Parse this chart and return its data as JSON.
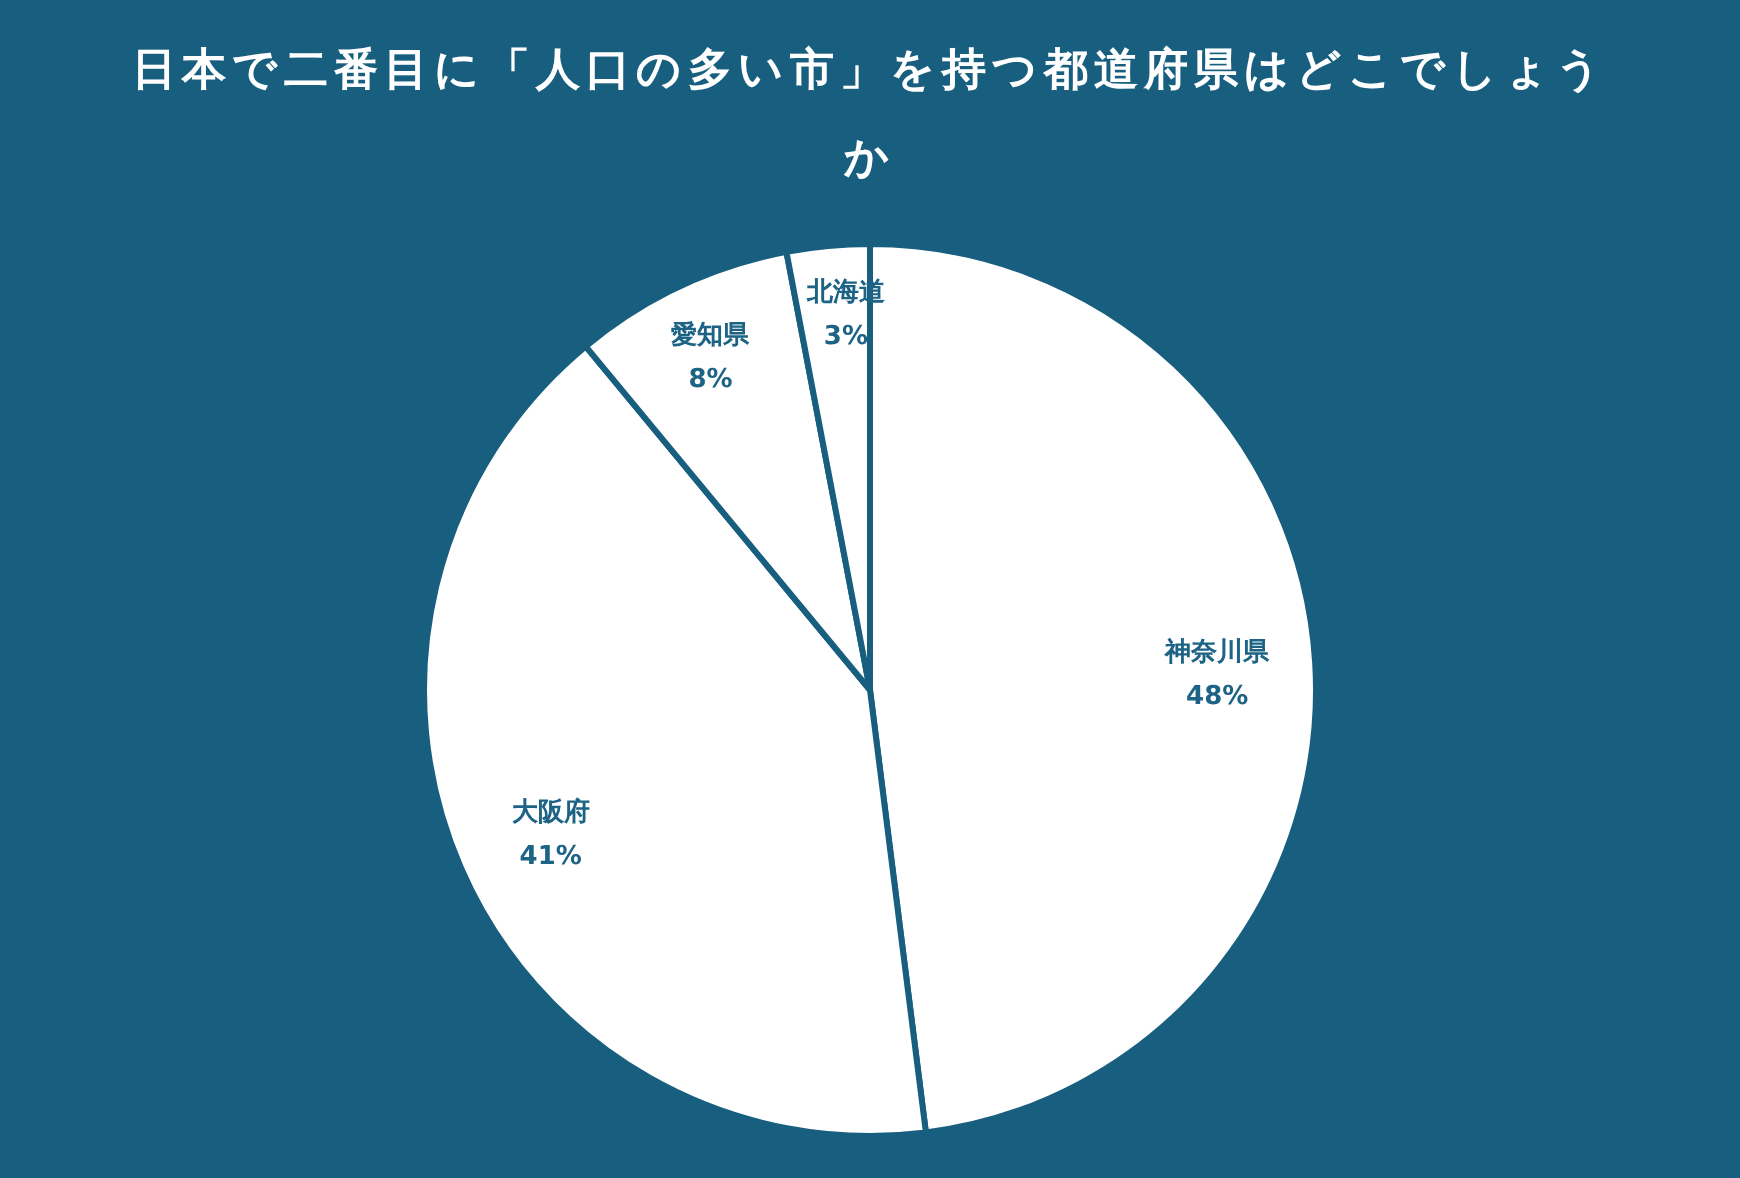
{
  "chart_data": {
    "type": "pie",
    "title": "日本で二番目に「人口の多い市」を持つ都道府県はどこでしょうか",
    "categories": [
      "神奈川県",
      "大阪府",
      "愛知県",
      "北海道"
    ],
    "values": [
      48,
      41,
      8,
      3
    ],
    "colors": [
      "#ffffff",
      "#ffffff",
      "#ffffff",
      "#ffffff"
    ],
    "value_labels": [
      "48%",
      "41%",
      "8%",
      "3%"
    ]
  }
}
